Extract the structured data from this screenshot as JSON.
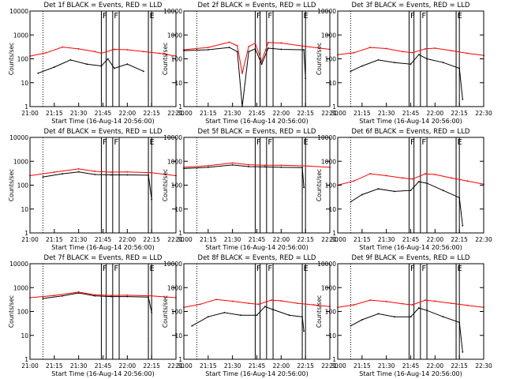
{
  "figure": {
    "x_ticks": [
      "21:00",
      "21:15",
      "21:30",
      "21:45",
      "22:00",
      "22:15",
      "22:30"
    ],
    "y_ticks": [
      "1",
      "10",
      "100",
      "1000",
      "10000"
    ],
    "ylabel": "Counts/sec",
    "xlabel": "Start Time (16-Aug-14 20:56:00)",
    "colors": {
      "events": "#000000",
      "lld": "#ff0000",
      "axes": "#000000",
      "dotted": "#000000"
    }
  },
  "chart_data": [
    {
      "type": "line",
      "title": "Det 1f BLACK = Events, RED = LLD",
      "xlabel": "Start Time (16-Aug-14 20:56:00)",
      "ylabel": "Counts/sec",
      "xlim": [
        "21:00",
        "22:30"
      ],
      "ylim": [
        1,
        10000
      ],
      "yscale": "log",
      "interval_markers": [
        {
          "label": "F",
          "start": "21:44",
          "end": "21:47"
        },
        {
          "label": "F",
          "start": "21:51",
          "end": "21:55"
        },
        {
          "label": "E",
          "start": "22:13",
          "end": "22:15"
        }
      ],
      "dotted_lines": [
        "21:08",
        "22:13"
      ],
      "series": [
        {
          "name": "Events",
          "color": "#000000",
          "x": [
            "21:05",
            "21:15",
            "21:25",
            "21:35",
            "21:44",
            "21:48",
            "21:52",
            "22:00",
            "22:10"
          ],
          "y": [
            25,
            45,
            90,
            60,
            50,
            100,
            40,
            60,
            30
          ]
        },
        {
          "name": "LLD",
          "color": "#ff0000",
          "x": [
            "21:00",
            "21:10",
            "21:20",
            "21:30",
            "21:40",
            "21:44",
            "21:52",
            "22:00",
            "22:10",
            "22:20",
            "22:30"
          ],
          "y": [
            130,
            180,
            310,
            260,
            200,
            170,
            250,
            240,
            200,
            170,
            130
          ]
        }
      ]
    },
    {
      "type": "line",
      "title": "Det 2f BLACK = Events, RED = LLD",
      "xlabel": "Start Time (16-Aug-14 20:56:00)",
      "ylabel": "Counts/sec",
      "xlim": [
        "21:00",
        "22:30"
      ],
      "ylim": [
        1,
        10000
      ],
      "yscale": "log",
      "interval_markers": [
        {
          "label": "F",
          "start": "21:44",
          "end": "21:47"
        },
        {
          "label": "F",
          "start": "21:51",
          "end": "21:55"
        },
        {
          "label": "E",
          "start": "22:13",
          "end": "22:15"
        }
      ],
      "dotted_lines": [
        "21:08",
        "22:13"
      ],
      "series": [
        {
          "name": "Events",
          "color": "#000000",
          "x": [
            "21:00",
            "21:15",
            "21:28",
            "21:33",
            "21:36",
            "21:40",
            "21:44",
            "21:48",
            "21:52",
            "22:00",
            "22:13",
            "22:14",
            "22:15"
          ],
          "y": [
            220,
            240,
            300,
            200,
            1,
            200,
            260,
            60,
            280,
            250,
            240,
            240,
            15
          ]
        },
        {
          "name": "LLD",
          "color": "#ff0000",
          "x": [
            "21:00",
            "21:15",
            "21:28",
            "21:33",
            "21:36",
            "21:40",
            "21:44",
            "21:48",
            "21:52",
            "22:00",
            "22:15",
            "22:30"
          ],
          "y": [
            240,
            300,
            500,
            350,
            25,
            330,
            450,
            80,
            480,
            460,
            330,
            250
          ]
        }
      ]
    },
    {
      "type": "line",
      "title": "Det 3f BLACK = Events, RED = LLD",
      "xlabel": "Start Time (16-Aug-14 20:56:00)",
      "ylabel": "Counts/sec",
      "xlim": [
        "21:00",
        "22:30"
      ],
      "ylim": [
        1,
        10000
      ],
      "yscale": "log",
      "interval_markers": [
        {
          "label": "F",
          "start": "21:44",
          "end": "21:47"
        },
        {
          "label": "F",
          "start": "21:51",
          "end": "21:55"
        },
        {
          "label": "E",
          "start": "22:13",
          "end": "22:15"
        }
      ],
      "dotted_lines": [
        "21:08",
        "22:13"
      ],
      "series": [
        {
          "name": "Events",
          "color": "#000000",
          "x": [
            "21:08",
            "21:15",
            "21:25",
            "21:35",
            "21:45",
            "21:50",
            "21:55",
            "22:05",
            "22:15",
            "22:17"
          ],
          "y": [
            30,
            50,
            90,
            70,
            60,
            150,
            100,
            70,
            40,
            2
          ]
        },
        {
          "name": "LLD",
          "color": "#ff0000",
          "x": [
            "21:00",
            "21:10",
            "21:20",
            "21:30",
            "21:40",
            "21:46",
            "21:54",
            "22:00",
            "22:10",
            "22:20",
            "22:30"
          ],
          "y": [
            150,
            180,
            300,
            270,
            200,
            180,
            260,
            280,
            220,
            170,
            140
          ]
        }
      ]
    },
    {
      "type": "line",
      "title": "Det 4f BLACK = Events, RED = LLD",
      "xlabel": "Start Time (16-Aug-14 20:56:00)",
      "ylabel": "Counts/sec",
      "xlim": [
        "21:00",
        "22:30"
      ],
      "ylim": [
        1,
        10000
      ],
      "yscale": "log",
      "interval_markers": [
        {
          "label": "F",
          "start": "21:44",
          "end": "21:47"
        },
        {
          "label": "F",
          "start": "21:51",
          "end": "21:55"
        },
        {
          "label": "E",
          "start": "22:13",
          "end": "22:15"
        }
      ],
      "dotted_lines": [
        "21:08",
        "22:13"
      ],
      "series": [
        {
          "name": "Events",
          "color": "#000000",
          "x": [
            "21:08",
            "21:20",
            "21:30",
            "21:40",
            "21:50",
            "22:00",
            "22:13",
            "22:15"
          ],
          "y": [
            220,
            300,
            360,
            280,
            270,
            270,
            260,
            25
          ]
        },
        {
          "name": "LLD",
          "color": "#ff0000",
          "x": [
            "21:00",
            "21:15",
            "21:30",
            "21:40",
            "21:50",
            "22:00",
            "22:15",
            "22:30"
          ],
          "y": [
            250,
            350,
            480,
            380,
            350,
            360,
            330,
            250
          ]
        }
      ]
    },
    {
      "type": "line",
      "title": "Det 5f BLACK = Events, RED = LLD",
      "xlabel": "Start Time (16-Aug-14 20:56:00)",
      "ylabel": "Counts/sec",
      "xlim": [
        "21:00",
        "22:30"
      ],
      "ylim": [
        1,
        10000
      ],
      "yscale": "log",
      "interval_markers": [
        {
          "label": "F",
          "start": "21:44",
          "end": "21:47"
        },
        {
          "label": "F",
          "start": "21:51",
          "end": "21:55"
        },
        {
          "label": "E",
          "start": "22:13",
          "end": "22:15"
        }
      ],
      "dotted_lines": [
        "21:08",
        "22:13"
      ],
      "series": [
        {
          "name": "Events",
          "color": "#000000",
          "x": [
            "21:00",
            "21:15",
            "21:30",
            "21:40",
            "21:50",
            "22:00",
            "22:13",
            "22:14"
          ],
          "y": [
            500,
            560,
            700,
            600,
            580,
            560,
            540,
            80
          ]
        },
        {
          "name": "LLD",
          "color": "#ff0000",
          "x": [
            "21:00",
            "21:15",
            "21:30",
            "21:40",
            "21:50",
            "22:00",
            "22:15",
            "22:30"
          ],
          "y": [
            560,
            650,
            850,
            720,
            680,
            680,
            640,
            560
          ]
        }
      ]
    },
    {
      "type": "line",
      "title": "Det 6f BLACK = Events, RED = LLD",
      "xlabel": "Start Time (16-Aug-14 20:56:00)",
      "ylabel": "Counts/sec",
      "xlim": [
        "21:00",
        "22:30"
      ],
      "ylim": [
        1,
        10000
      ],
      "yscale": "log",
      "interval_markers": [
        {
          "label": "F",
          "start": "21:44",
          "end": "21:47"
        },
        {
          "label": "F",
          "start": "21:51",
          "end": "21:55"
        },
        {
          "label": "E",
          "start": "22:13",
          "end": "22:15"
        }
      ],
      "dotted_lines": [
        "21:08",
        "22:13"
      ],
      "series": [
        {
          "name": "Events",
          "color": "#000000",
          "x": [
            "21:08",
            "21:15",
            "21:25",
            "21:35",
            "21:45",
            "21:50",
            "21:55",
            "22:05",
            "22:15",
            "22:17"
          ],
          "y": [
            20,
            40,
            70,
            55,
            60,
            140,
            120,
            60,
            30,
            2
          ]
        },
        {
          "name": "LLD",
          "color": "#ff0000",
          "x": [
            "21:00",
            "21:10",
            "21:20",
            "21:30",
            "21:40",
            "21:46",
            "21:54",
            "22:00",
            "22:10",
            "22:20",
            "22:30"
          ],
          "y": [
            100,
            150,
            300,
            250,
            200,
            180,
            300,
            280,
            200,
            150,
            110
          ]
        }
      ]
    },
    {
      "type": "line",
      "title": "Det 7f BLACK = Events, RED = LLD",
      "xlabel": "Start Time (16-Aug-14 20:56:00)",
      "ylabel": "Counts/sec",
      "xlim": [
        "21:00",
        "22:30"
      ],
      "ylim": [
        1,
        10000
      ],
      "yscale": "log",
      "interval_markers": [
        {
          "label": "F",
          "start": "21:44",
          "end": "21:47"
        },
        {
          "label": "F",
          "start": "21:51",
          "end": "21:55"
        },
        {
          "label": "E",
          "start": "22:13",
          "end": "22:15"
        }
      ],
      "dotted_lines": [
        "21:08",
        "22:13"
      ],
      "series": [
        {
          "name": "Events",
          "color": "#000000",
          "x": [
            "21:08",
            "21:20",
            "21:30",
            "21:40",
            "21:50",
            "22:00",
            "22:13",
            "22:15"
          ],
          "y": [
            350,
            450,
            600,
            450,
            420,
            420,
            400,
            90
          ]
        },
        {
          "name": "LLD",
          "color": "#ff0000",
          "x": [
            "21:00",
            "21:15",
            "21:30",
            "21:40",
            "21:50",
            "22:00",
            "22:15",
            "22:30"
          ],
          "y": [
            380,
            470,
            650,
            500,
            470,
            480,
            450,
            380
          ]
        }
      ]
    },
    {
      "type": "line",
      "title": "Det 8f BLACK = Events, RED = LLD",
      "xlabel": "Start Time (16-Aug-14 20:56:00)",
      "ylabel": "Counts/sec",
      "xlim": [
        "21:00",
        "22:30"
      ],
      "ylim": [
        1,
        10000
      ],
      "yscale": "log",
      "interval_markers": [
        {
          "label": "F",
          "start": "21:44",
          "end": "21:47"
        },
        {
          "label": "F",
          "start": "21:51",
          "end": "21:55"
        },
        {
          "label": "E",
          "start": "22:13",
          "end": "22:15"
        }
      ],
      "dotted_lines": [
        "21:08",
        "22:13"
      ],
      "series": [
        {
          "name": "Events",
          "color": "#000000",
          "x": [
            "21:05",
            "21:15",
            "21:25",
            "21:35",
            "21:45",
            "21:50",
            "21:55",
            "22:05",
            "22:13",
            "22:14"
          ],
          "y": [
            25,
            60,
            90,
            70,
            70,
            160,
            120,
            70,
            60,
            15
          ]
        },
        {
          "name": "LLD",
          "color": "#ff0000",
          "x": [
            "21:00",
            "21:10",
            "21:20",
            "21:30",
            "21:40",
            "21:46",
            "21:54",
            "22:00",
            "22:10",
            "22:20",
            "22:30"
          ],
          "y": [
            150,
            200,
            320,
            270,
            220,
            200,
            300,
            280,
            220,
            190,
            160
          ]
        }
      ]
    },
    {
      "type": "line",
      "title": "Det 9f BLACK = Events, RED = LLD",
      "xlabel": "Start Time (16-Aug-14 20:56:00)",
      "ylabel": "Counts/sec",
      "xlim": [
        "21:00",
        "22:30"
      ],
      "ylim": [
        1,
        10000
      ],
      "yscale": "log",
      "interval_markers": [
        {
          "label": "F",
          "start": "21:44",
          "end": "21:47"
        },
        {
          "label": "F",
          "start": "21:51",
          "end": "21:55"
        },
        {
          "label": "E",
          "start": "22:13",
          "end": "22:15"
        }
      ],
      "dotted_lines": [
        "21:08",
        "22:13"
      ],
      "series": [
        {
          "name": "Events",
          "color": "#000000",
          "x": [
            "21:08",
            "21:15",
            "21:25",
            "21:35",
            "21:45",
            "21:50",
            "21:55",
            "22:05",
            "22:15",
            "22:17"
          ],
          "y": [
            25,
            45,
            80,
            60,
            60,
            140,
            110,
            60,
            35,
            2
          ]
        },
        {
          "name": "LLD",
          "color": "#ff0000",
          "x": [
            "21:00",
            "21:10",
            "21:20",
            "21:30",
            "21:40",
            "21:46",
            "21:54",
            "22:00",
            "22:10",
            "22:20",
            "22:30"
          ],
          "y": [
            150,
            190,
            300,
            260,
            210,
            190,
            300,
            270,
            220,
            180,
            150
          ]
        }
      ]
    }
  ]
}
